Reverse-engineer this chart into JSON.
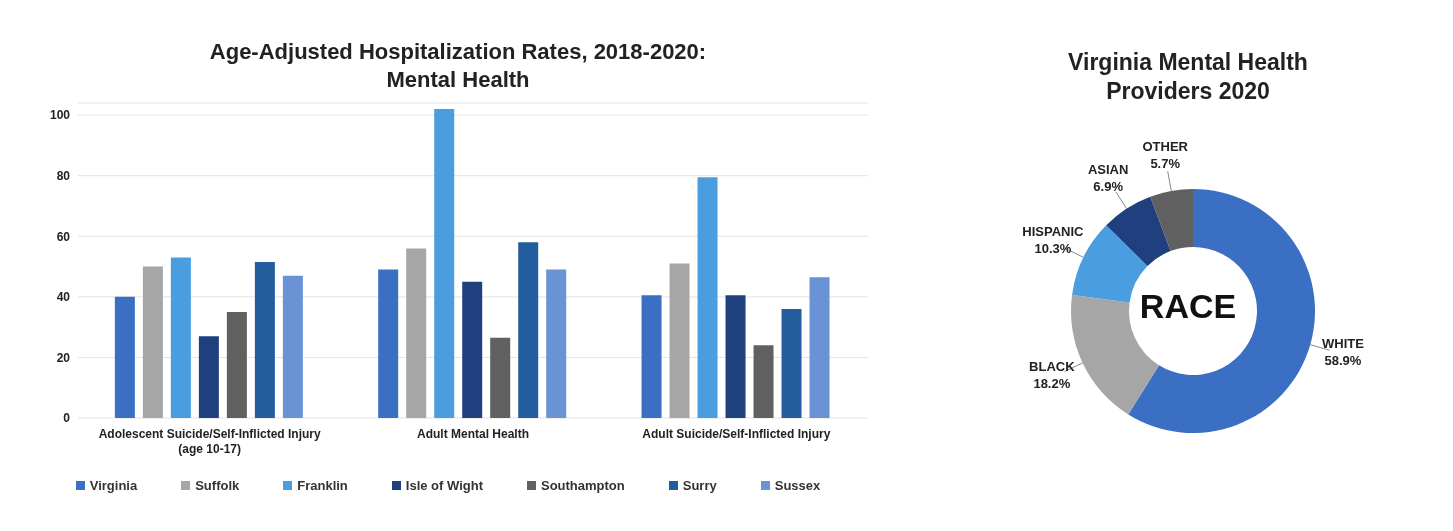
{
  "chart_data": [
    {
      "type": "bar",
      "title": "Age-Adjusted Hospitalization Rates, 2018-2020:\nMental Health",
      "categories": [
        "Adolescent Suicide/Self-Inflicted Injury (age 10-17)",
        "Adult Mental Health",
        "Adult Suicide/Self-Inflicted Injury"
      ],
      "series": [
        {
          "name": "Virginia",
          "color": "#3a6fc4",
          "values": [
            40,
            49,
            40.5
          ]
        },
        {
          "name": "Suffolk",
          "color": "#a6a6a6",
          "values": [
            50,
            56,
            51
          ]
        },
        {
          "name": "Franklin",
          "color": "#4a9ee0",
          "values": [
            53,
            102,
            79.5
          ]
        },
        {
          "name": "Isle of Wight",
          "color": "#1f3f7f",
          "values": [
            27,
            45,
            40.5
          ]
        },
        {
          "name": "Southampton",
          "color": "#606060",
          "values": [
            35,
            26.5,
            24
          ]
        },
        {
          "name": "Surry",
          "color": "#245d9e",
          "values": [
            51.5,
            58,
            36
          ]
        },
        {
          "name": "Sussex",
          "color": "#6a93d6",
          "values": [
            47,
            49,
            46.5
          ]
        }
      ],
      "ylim": [
        0,
        104
      ],
      "yticks": [
        0,
        20,
        40,
        60,
        80,
        100
      ],
      "grid": "y",
      "legend": "bottom"
    },
    {
      "type": "donut",
      "title": "Virginia Mental Health\nProviders 2020",
      "categories": [
        "WHITE",
        "BLACK",
        "HISPANIC",
        "ASIAN",
        "OTHER"
      ],
      "values": [
        58.9,
        18.2,
        10.3,
        6.9,
        5.7
      ],
      "colors": [
        "#3a6fc4",
        "#a6a6a6",
        "#4a9ee0",
        "#1f3f7f",
        "#606060"
      ],
      "value_labels": [
        "58.9%",
        "18.2%",
        "10.3%",
        "6.9%",
        "5.7%"
      ],
      "annotations": [
        "RACE"
      ]
    }
  ]
}
